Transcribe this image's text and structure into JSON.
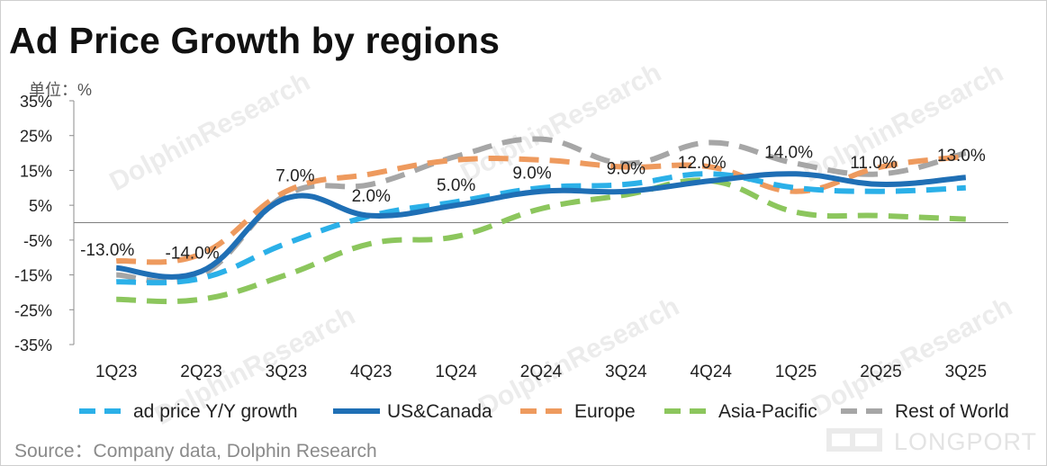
{
  "header": {
    "title": "Ad Price Growth by regions",
    "unit_label": "单位：%",
    "source": "Source：Company data, Dolphin Research"
  },
  "watermarks": {
    "brand": "LONGPORT",
    "text": "DolphinResearch"
  },
  "colors": {
    "ad_price": "#2BB0E8",
    "us_canada": "#1F6FB5",
    "europe": "#EE9A5E",
    "asia_pacific": "#8CC65D",
    "rest_of_world": "#A6A6A6"
  },
  "chart_data": {
    "type": "line",
    "title": "Ad Price Growth by regions",
    "xlabel": "",
    "ylabel": "%",
    "ylim": [
      -35,
      35
    ],
    "yticks": [
      -35,
      -25,
      -15,
      -5,
      5,
      15,
      25,
      35
    ],
    "ytick_labels": [
      "-35%",
      "-25%",
      "-15%",
      "-5%",
      "5%",
      "15%",
      "25%",
      "35%"
    ],
    "grid": false,
    "legend_position": "bottom",
    "categories": [
      "1Q23",
      "2Q23",
      "3Q23",
      "4Q23",
      "1Q24",
      "2Q24",
      "3Q24",
      "4Q24",
      "1Q25",
      "2Q25",
      "3Q25"
    ],
    "series": [
      {
        "name": "ad price Y/Y growth",
        "style": "dashed",
        "color": "#2BB0E8",
        "values": [
          -17,
          -16,
          -6,
          2,
          6,
          10,
          11,
          14,
          10,
          9,
          10
        ]
      },
      {
        "name": "US&Canada",
        "style": "solid",
        "color": "#1F6FB5",
        "values": [
          -13,
          -14,
          7,
          2,
          5,
          9,
          9,
          12,
          14,
          11,
          13
        ],
        "data_labels": [
          "-13.0%",
          "-14.0%",
          "7.0%",
          "2.0%",
          "5.0%",
          "9.0%",
          "9.0%",
          "12.0%",
          "14.0%",
          "11.0%",
          "13.0%"
        ]
      },
      {
        "name": "Europe",
        "style": "dashed",
        "color": "#EE9A5E",
        "values": [
          -11,
          -9,
          9,
          14,
          18,
          18,
          16,
          16,
          9,
          16,
          19
        ]
      },
      {
        "name": "Asia-Pacific",
        "style": "dashed",
        "color": "#8CC65D",
        "values": [
          -22,
          -22,
          -15,
          -6,
          -4,
          4,
          8,
          12,
          3,
          2,
          1
        ]
      },
      {
        "name": "Rest of World",
        "style": "dashed",
        "color": "#A6A6A6",
        "values": [
          -15,
          -15,
          8,
          11,
          19,
          24,
          17,
          23,
          17,
          14,
          20
        ]
      }
    ]
  }
}
